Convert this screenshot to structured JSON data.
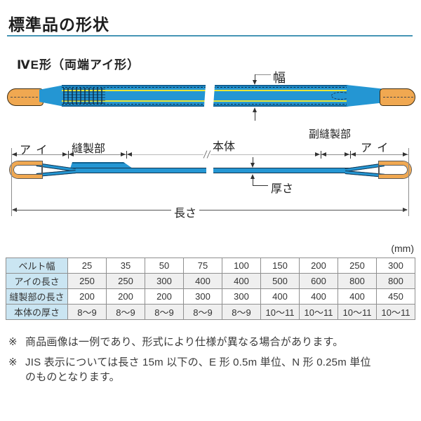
{
  "page": {
    "title": "標準品の形状",
    "section_heading": "ⅣE形（両端アイ形）"
  },
  "diagram": {
    "width_label": "幅",
    "eye_left_label": "アイ",
    "sewn_label": "縫製部",
    "body_label": "本体",
    "sub_sewn_label": "副縫製部",
    "eye_right_label": "アイ",
    "thickness_label": "厚さ",
    "length_label": "長さ"
  },
  "table": {
    "unit_label": "(mm)",
    "rows": [
      {
        "header": "ベルト幅",
        "values": [
          "25",
          "35",
          "50",
          "75",
          "100",
          "150",
          "200",
          "250",
          "300"
        ]
      },
      {
        "header": "アイの長さ",
        "values": [
          "250",
          "250",
          "300",
          "400",
          "400",
          "500",
          "600",
          "800",
          "800"
        ]
      },
      {
        "header": "縫製部の長さ",
        "values": [
          "200",
          "200",
          "200",
          "300",
          "300",
          "400",
          "400",
          "400",
          "450"
        ]
      },
      {
        "header": "本体の厚さ",
        "values": [
          "8～9",
          "8～9",
          "8～9",
          "8～9",
          "8～9",
          "10～11",
          "10～11",
          "10～11",
          "10～11"
        ]
      }
    ]
  },
  "notes": [
    {
      "marker": "※",
      "text": "商品画像は一例であり、形式により仕様が異なる場合があります。"
    },
    {
      "marker": "※",
      "text": "JIS 表示については長さ 15m 以下の、E 形 0.5m 単位、N 形 0.25m 単位\nのものとなります。"
    }
  ],
  "colors": {
    "accent_underline": "#4695b5",
    "belt_blue": "#2496d3",
    "stripe_yellow": "#e8e636",
    "eye_orange": "#f0a851",
    "table_header_bg": "#cae5f2"
  }
}
